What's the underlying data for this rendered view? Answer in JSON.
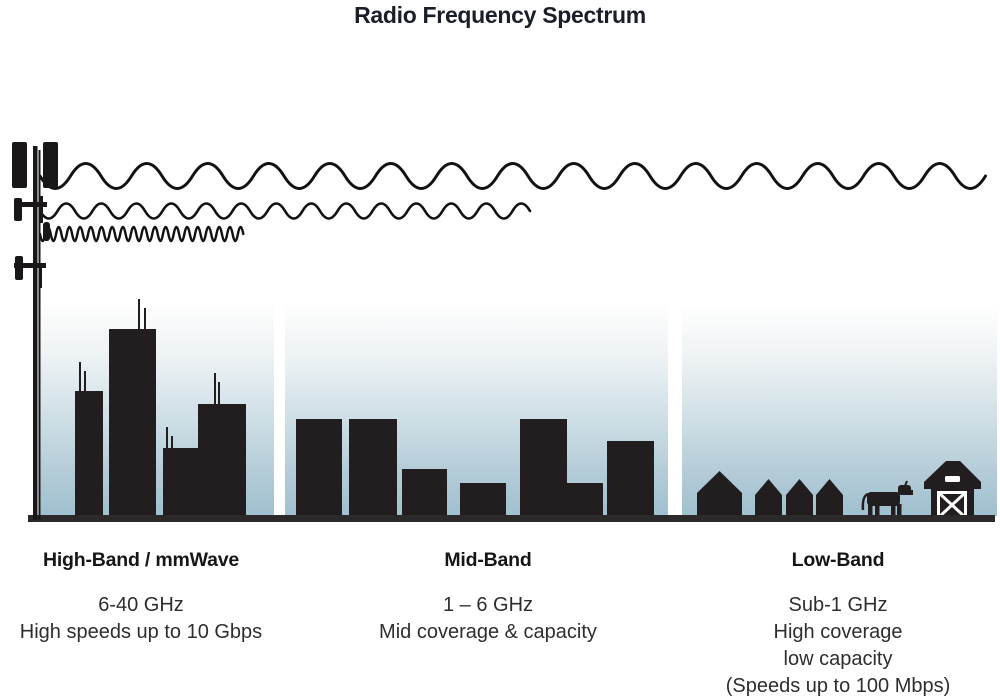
{
  "title": "Radio Frequency Spectrum",
  "bands": [
    {
      "name": "High-Band / mmWave",
      "lines": [
        "6-40 GHz",
        "High speeds up to 10 Gbps"
      ]
    },
    {
      "name": "Mid-Band",
      "lines": [
        "1 – 6 GHz",
        "Mid coverage & capacity"
      ]
    },
    {
      "name": "Low-Band",
      "lines": [
        "Sub-1 GHz",
        "High coverage",
        "low capacity",
        "(Speeds up to 100 Mbps)"
      ]
    }
  ],
  "colors": {
    "silhouette": "#221e1f",
    "tower": "#1a1718",
    "ground": "#2b2929",
    "sky_stops": [
      "#fefefe",
      "#edf2f4",
      "#cddee5",
      "#b3cbd7",
      "#9fc0cf"
    ],
    "title_text": "#191e28",
    "body_text": "#2e2e2e"
  }
}
